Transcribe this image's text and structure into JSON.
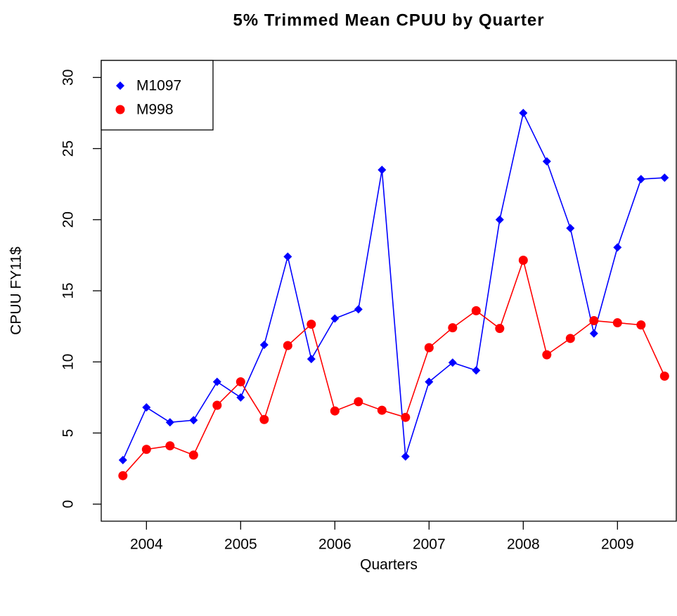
{
  "chart_data": {
    "type": "line",
    "title": "5% Trimmed Mean CPUU by Quarter",
    "x_label": "Quarters",
    "y_label": "CPUU FY11$",
    "x": [
      2003.75,
      2004,
      2004.25,
      2004.5,
      2004.75,
      2005,
      2005.25,
      2005.5,
      2005.75,
      2006,
      2006.25,
      2006.5,
      2006.75,
      2007,
      2007.25,
      2007.5,
      2007.75,
      2008,
      2008.25,
      2008.5,
      2008.75,
      2009,
      2009.25,
      2009.5
    ],
    "series": [
      {
        "name": "M1097",
        "color": "#0000ff",
        "marker": "diamond",
        "values": [
          3.1,
          6.8,
          5.75,
          5.9,
          8.6,
          7.5,
          11.2,
          17.4,
          10.2,
          13.05,
          13.7,
          23.5,
          3.35,
          8.6,
          9.95,
          9.4,
          20.0,
          27.5,
          24.1,
          19.4,
          12.0,
          18.05,
          22.85,
          22.95
        ]
      },
      {
        "name": "M998",
        "color": "#ff0000",
        "marker": "circle",
        "values": [
          2.0,
          3.85,
          4.1,
          3.45,
          6.95,
          8.6,
          5.95,
          11.15,
          12.65,
          6.55,
          7.2,
          6.6,
          6.1,
          11.0,
          12.4,
          13.6,
          12.35,
          17.15,
          10.5,
          11.65,
          12.9,
          12.75,
          12.6,
          9.0
        ]
      }
    ],
    "xlim": [
      2003.52,
      2009.73
    ],
    "xticks": [
      2004,
      2005,
      2006,
      2007,
      2008,
      2009
    ],
    "ylim": [
      -1.2,
      31.2
    ],
    "yticks": [
      0,
      5,
      10,
      15,
      20,
      25,
      30
    ],
    "legend": "top-left"
  }
}
